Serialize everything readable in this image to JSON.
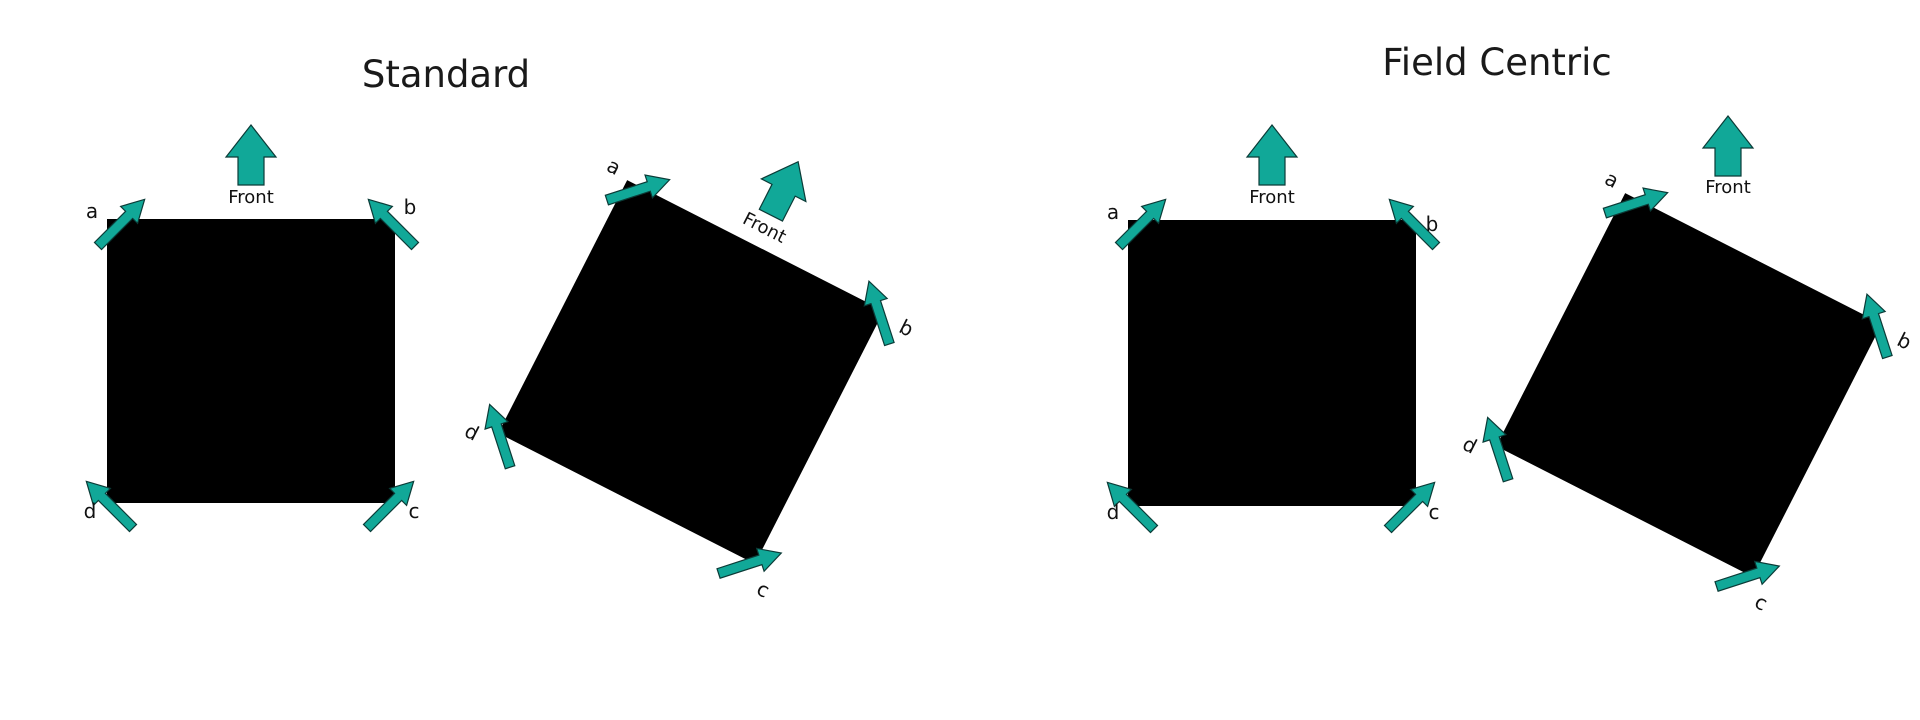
{
  "titles": {
    "standard": "Standard",
    "field_centric": "Field Centric"
  },
  "front_label": "Front",
  "wheels": {
    "a": "a",
    "b": "b",
    "c": "c",
    "d": "d"
  },
  "colors": {
    "arrow_fill": "#11a898",
    "robot_body": "#000000",
    "text": "#111111"
  },
  "panels": [
    {
      "section": "standard",
      "robot_rotation_deg": 0,
      "front_arrow_rotation_deg": 0,
      "front_label_rotation_deg": 0
    },
    {
      "section": "standard",
      "robot_rotation_deg": 27,
      "front_arrow_rotation_deg": 27,
      "front_label_rotation_deg": 27
    },
    {
      "section": "field_centric",
      "robot_rotation_deg": 0,
      "front_arrow_rotation_deg": 0,
      "front_label_rotation_deg": 0
    },
    {
      "section": "field_centric",
      "robot_rotation_deg": 27,
      "front_arrow_rotation_deg": 0,
      "front_label_rotation_deg": 0
    }
  ]
}
